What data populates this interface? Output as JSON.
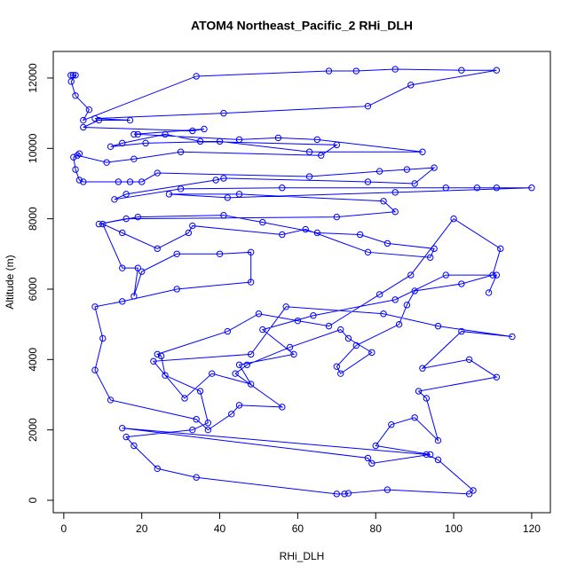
{
  "chart_data": {
    "type": "line",
    "title": "ATOM4 Northeast_Pacific_2 RHi_DLH",
    "x_label": "RHi_DLH",
    "y_label": "Altitude (m)",
    "color": "#0000ff",
    "marker": "open-circle",
    "xlim": [
      -2.7,
      124.8
    ],
    "ylim": [
      -353,
      12755
    ],
    "xticks": [
      0,
      20,
      40,
      60,
      80,
      100,
      120
    ],
    "yticks": [
      0,
      2000,
      4000,
      6000,
      8000,
      10000,
      12000
    ],
    "x": [
      1.8,
      2.4,
      3.0,
      1.9,
      3.0,
      6.5,
      5,
      34,
      68,
      75,
      85,
      102,
      111,
      89,
      78,
      41,
      8,
      17,
      9,
      5,
      33,
      36,
      18,
      19,
      45,
      55,
      65,
      92,
      63,
      40,
      21,
      12,
      15,
      26,
      35,
      70,
      66,
      30,
      18,
      11,
      3.5,
      4,
      2.5,
      3,
      4,
      5,
      14,
      17,
      20,
      24,
      63,
      81,
      88,
      95,
      90,
      78,
      41,
      39,
      16,
      13,
      30,
      56,
      98,
      106,
      111,
      120,
      85,
      42,
      27,
      45,
      82,
      85,
      70,
      16,
      9,
      19,
      41,
      51,
      65,
      76,
      83,
      95,
      94,
      78,
      62,
      56,
      33,
      32,
      24,
      15,
      10,
      15,
      19,
      18,
      20,
      29,
      40,
      48,
      48,
      29,
      15,
      8,
      10,
      8,
      12,
      34,
      37,
      43,
      45,
      56,
      44,
      47,
      58,
      71,
      73,
      79,
      71,
      70,
      75,
      86,
      88,
      90,
      102,
      110,
      112,
      100,
      89,
      81,
      68,
      60,
      50,
      42,
      24,
      25,
      26,
      35,
      37,
      33,
      16,
      18,
      24,
      34,
      70,
      72,
      73,
      83,
      104,
      105,
      96,
      93,
      15,
      78,
      79,
      94,
      80,
      84,
      90,
      96,
      93,
      91,
      111,
      104,
      92,
      102,
      115,
      96,
      82,
      57,
      48,
      23,
      31,
      38,
      48,
      45,
      59,
      51,
      64,
      85,
      98,
      111,
      109
    ],
    "values": [
      12080,
      12080,
      12080,
      11900,
      11500,
      11100,
      10800,
      12050,
      12200,
      12200,
      12250,
      12220,
      12220,
      11800,
      11200,
      11000,
      10850,
      10800,
      10800,
      10600,
      10500,
      10550,
      10400,
      10400,
      10250,
      10300,
      10250,
      9900,
      9900,
      10200,
      10150,
      10050,
      10150,
      10400,
      10200,
      10100,
      9800,
      9900,
      9700,
      9600,
      9800,
      9850,
      9750,
      9400,
      9100,
      9050,
      9050,
      9050,
      9050,
      9300,
      9200,
      9350,
      9400,
      9450,
      9000,
      9050,
      9150,
      9100,
      8700,
      8550,
      8850,
      8880,
      8880,
      8880,
      8880,
      8880,
      8750,
      8600,
      8700,
      8700,
      8500,
      8200,
      8050,
      8000,
      7850,
      8050,
      8100,
      7900,
      7600,
      7550,
      7300,
      7150,
      6900,
      7050,
      7700,
      7550,
      7800,
      7600,
      7150,
      7600,
      7850,
      6600,
      6600,
      5800,
      6500,
      7000,
      7000,
      7050,
      6200,
      6000,
      5650,
      5500,
      4600,
      3700,
      2850,
      2300,
      2000,
      2450,
      2700,
      2650,
      3600,
      3850,
      4350,
      4850,
      4600,
      4200,
      3600,
      3800,
      4400,
      5000,
      5550,
      5950,
      6150,
      6400,
      7150,
      8000,
      6400,
      5850,
      4950,
      5100,
      5300,
      4800,
      4150,
      4100,
      3550,
      3100,
      2200,
      2000,
      1800,
      1550,
      900,
      650,
      180,
      180,
      200,
      300,
      180,
      280,
      1150,
      1300,
      2050,
      1200,
      1050,
      1300,
      1550,
      2150,
      2350,
      1700,
      2900,
      3100,
      3500,
      4000,
      3750,
      4800,
      4650,
      4950,
      5300,
      5500,
      4150,
      3950,
      2900,
      3600,
      3300,
      3850,
      4150,
      4850,
      5250,
      5700,
      6400,
      6400,
      5900
    ]
  }
}
